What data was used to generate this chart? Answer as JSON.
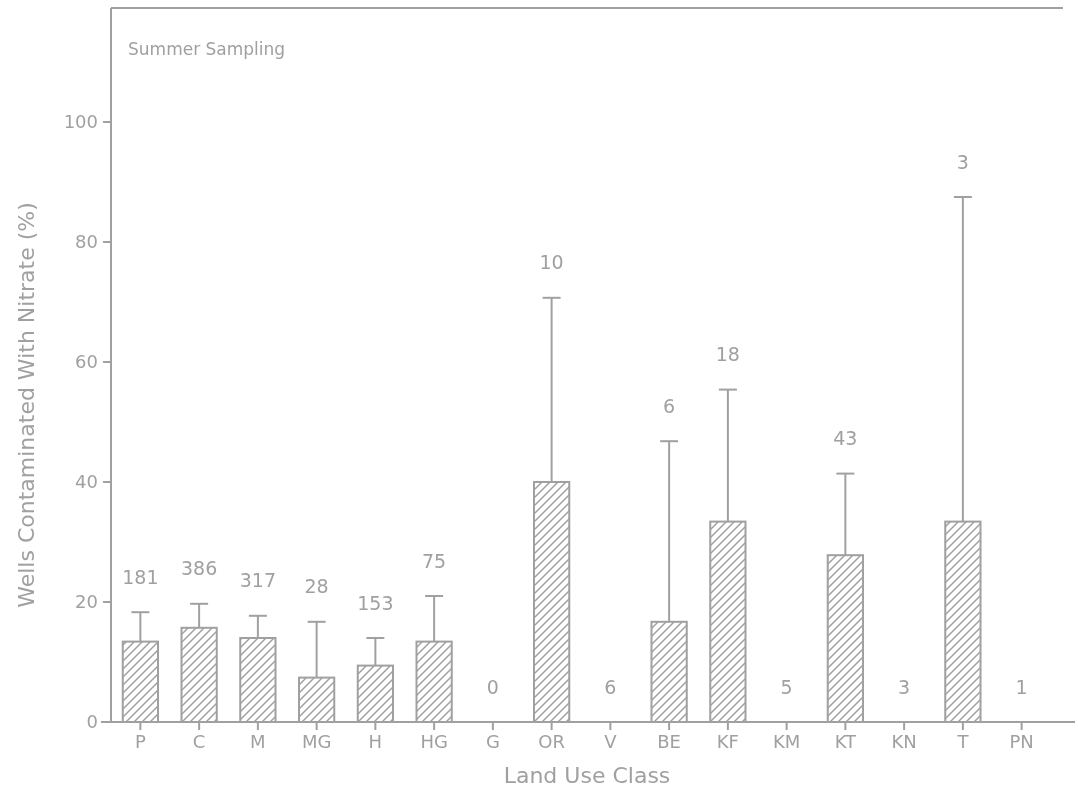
{
  "chart_data": {
    "type": "bar",
    "title": "Summer Sampling",
    "xlabel": "Land Use Class",
    "ylabel": "Wells Contaminated With Nitrate (%)",
    "categories": [
      "P",
      "C",
      "M",
      "MG",
      "H",
      "HG",
      "G",
      "OR",
      "V",
      "BE",
      "KF",
      "KM",
      "KT",
      "KN",
      "T",
      "PN"
    ],
    "values": [
      13.4,
      15.7,
      14.0,
      7.4,
      9.4,
      13.4,
      0,
      40,
      0,
      16.7,
      33.4,
      0,
      27.8,
      0,
      33.4,
      0
    ],
    "errors": [
      [
        13.4,
        18.3
      ],
      [
        15.7,
        19.7
      ],
      [
        14.0,
        17.7
      ],
      [
        7.4,
        16.7
      ],
      [
        9.4,
        14.0
      ],
      [
        13.4,
        21.0
      ],
      null,
      [
        40,
        70.7
      ],
      null,
      [
        16.7,
        46.8
      ],
      [
        33.4,
        55.4
      ],
      null,
      [
        27.8,
        41.4
      ],
      null,
      [
        33.4,
        87.5
      ],
      null
    ],
    "color": "#a0a0a0",
    "ylim": [
      0,
      119
    ],
    "yticks": [
      0,
      20,
      40,
      60,
      80,
      100
    ],
    "annotations": [
      {
        "text": "181",
        "x": "P",
        "y": 18.3
      },
      {
        "text": "386",
        "x": "C",
        "y": 19.7
      },
      {
        "text": "317",
        "x": "M",
        "y": 17.7
      },
      {
        "text": "28",
        "x": "MG",
        "y": 16.7
      },
      {
        "text": "153",
        "x": "H",
        "y": 14.0
      },
      {
        "text": "75",
        "x": "HG",
        "y": 21.0
      },
      {
        "text": "0",
        "x": "G",
        "y": 0
      },
      {
        "text": "10",
        "x": "OR",
        "y": 70.7
      },
      {
        "text": "6",
        "x": "V",
        "y": 0
      },
      {
        "text": "6",
        "x": "BE",
        "y": 46.8
      },
      {
        "text": "18",
        "x": "KF",
        "y": 55.4
      },
      {
        "text": "5",
        "x": "KM",
        "y": 0
      },
      {
        "text": "43",
        "x": "KT",
        "y": 41.4
      },
      {
        "text": "3",
        "x": "KN",
        "y": 0
      },
      {
        "text": "3",
        "x": "T",
        "y": 87.5
      },
      {
        "text": "1",
        "x": "PN",
        "y": 0
      }
    ]
  }
}
